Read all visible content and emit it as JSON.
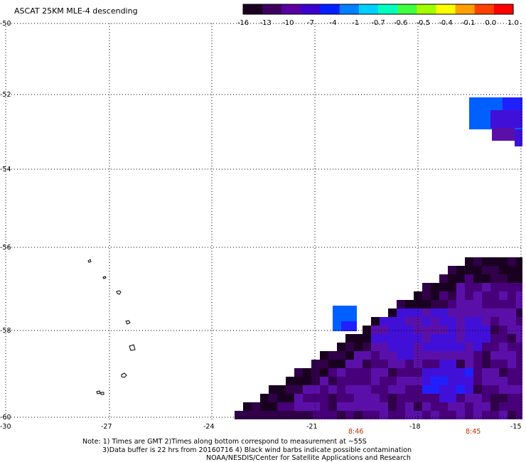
{
  "title": "ASCAT 25KM MLE-4 descending",
  "colorbar": {
    "labels": [
      "-16",
      "-13",
      "-10",
      "-7",
      "-4",
      "-1",
      "-0.7",
      "-0.6",
      "-0.5",
      "-0.4",
      "-0.1",
      "0.0",
      "1.0"
    ],
    "colors": [
      "#1a0020",
      "#3c0060",
      "#5a00a0",
      "#3c00d0",
      "#0020ff",
      "#0080ff",
      "#00d0ff",
      "#00ffc0",
      "#40ff40",
      "#a0ff00",
      "#ffff00",
      "#ffa000",
      "#ff4000",
      "#ff0000"
    ]
  },
  "axes": {
    "lat_labels": [
      "-50",
      "-52",
      "-54",
      "-56",
      "-58",
      "-60"
    ],
    "lon_labels": [
      "-30",
      "-27",
      "-24",
      "-21",
      "-18",
      "-15"
    ]
  },
  "pass_times": [
    "8:46",
    "8:45"
  ],
  "notes": [
    "Note: 1) Times are GMT 2)Times along bottom correspond to measurement at ~55S",
    "3)Data buffer is 22 hrs from 20160716 4) Black wind barbs indicate possible contamination",
    "NOAA/NESDIS/Center for Satellite Applications and Research"
  ]
}
